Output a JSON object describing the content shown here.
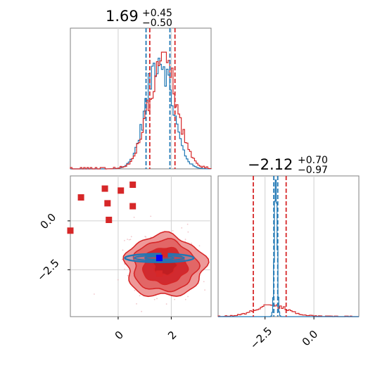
{
  "chart_data": {
    "type": "corner",
    "colors": {
      "blue": "#1f77b4",
      "red": "#d62728",
      "grid": "#d0d0d0",
      "frame": "#808080"
    },
    "panels": [
      {
        "kind": "histogram",
        "title": {
          "value": "1.69",
          "upper": "+0.45",
          "lower": "−0.50"
        },
        "xlim": [
          -1.8,
          3.5
        ],
        "quantiles": {
          "blue": [
            1.05,
            1.95
          ],
          "red": [
            1.19,
            2.14
          ]
        },
        "grid_x": [
          0,
          2
        ]
      },
      {
        "kind": "scatter-density",
        "xlim": [
          -1.8,
          3.5
        ],
        "ylim": [
          -4.9,
          2.3
        ],
        "x_ticks": [
          {
            "v": 0,
            "label": "0"
          },
          {
            "v": 2,
            "label": "2"
          }
        ],
        "y_ticks": [
          {
            "v": 0,
            "label": "0.0"
          },
          {
            "v": -2.5,
            "label": "−2.5"
          }
        ],
        "outliers": [
          [
            -1.4,
            1.2
          ],
          [
            -0.5,
            1.65
          ],
          [
            -0.4,
            0.9
          ],
          [
            0.1,
            1.55
          ],
          [
            0.55,
            1.85
          ],
          [
            0.55,
            0.75
          ],
          [
            -0.35,
            0.05
          ],
          [
            -1.8,
            -0.5
          ],
          [
            1.75,
            -1.6
          ],
          [
            1.55,
            -2.7
          ]
        ],
        "blue_marker": [
          1.55,
          -1.9
        ],
        "red_marker": [
          1.75,
          -1.7
        ],
        "blue_ellipse": {
          "cx": 1.55,
          "cy": -1.9,
          "rx": 1.3,
          "ry": 0.22
        }
      },
      {
        "kind": "histogram",
        "title": {
          "value": "−2.12",
          "upper": "+0.70",
          "lower": "−0.97"
        },
        "xlim": [
          -4.9,
          2.3
        ],
        "quantiles": {
          "blue": [
            -2.05,
            -1.85
          ],
          "red": [
            -3.1,
            -1.42
          ]
        },
        "x_ticks": [
          {
            "v": -2.5,
            "label": "−2.5"
          },
          {
            "v": 0,
            "label": "0.0"
          }
        ],
        "grid_x": [
          -2.5,
          0
        ]
      }
    ]
  }
}
